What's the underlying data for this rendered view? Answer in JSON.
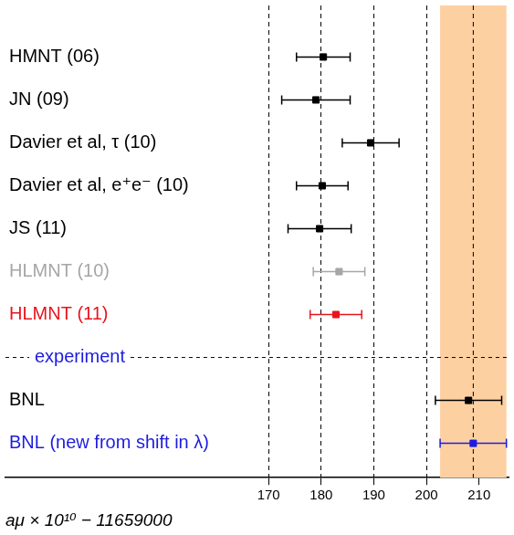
{
  "chart_data": {
    "type": "scatter",
    "categories": [
      "HMNT (06)",
      "JN (09)",
      "Davier et al, τ (10)",
      "Davier et al, e⁺e⁻ (10)",
      "JS (11)",
      "HLMNT (10)",
      "HLMNT (11)",
      "experiment",
      "BNL",
      "BNL (new from shift in λ)"
    ],
    "values": [
      180.4,
      179.0,
      189.4,
      180.2,
      179.7,
      183.4,
      182.8,
      null,
      208.0,
      208.9
    ],
    "errors": [
      5.1,
      6.5,
      5.4,
      4.9,
      6.0,
      4.9,
      4.9,
      null,
      6.3,
      6.3
    ],
    "colors": [
      "#000000",
      "#000000",
      "#000000",
      "#000000",
      "#000000",
      "#a6a6a6",
      "#e8141c",
      "#1c1ce0",
      "#000000",
      "#1c1ce0"
    ],
    "x_label": "aμ × 10¹⁰ − 11659000",
    "xlim": [
      120,
      215.6
    ],
    "xticks": [
      170,
      180,
      190,
      200,
      210
    ],
    "band": {
      "range": [
        202.6,
        215.2
      ],
      "color": "#fdd0a2"
    },
    "reference_line": 208.9,
    "grid": true,
    "tick_labels": "x"
  }
}
